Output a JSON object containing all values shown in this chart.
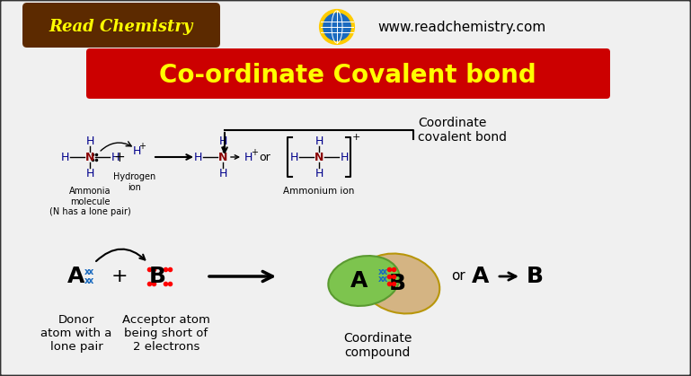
{
  "bg_color": "#f0f0f0",
  "border_color": "#333333",
  "title_text": "Co-ordinate Covalent bond",
  "title_bg": "#cc0000",
  "title_fg": "#ffff00",
  "website": "www.readchemistry.com",
  "logo_text": "Read Chemistry",
  "logo_bg": "#5c2a00",
  "logo_fg": "#ffff00",
  "bottom_labels": {
    "donor": "Donor\natom with a\nlone pair",
    "acceptor": "Acceptor atom\nbeing short of\n2 electrons",
    "coord_compound": "Coordinate\ncompound",
    "coord_bond": "Coordinate\ncovalent bond"
  },
  "ammonia_labels": {
    "ammonia_mol": "Ammonia\nmolecule\n(N has a lone pair)",
    "hydrogen_ion": "Hydrogen\nion",
    "ammonium_ion": "Ammonium ion"
  }
}
